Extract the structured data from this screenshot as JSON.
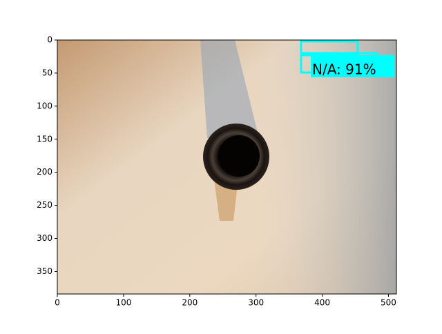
{
  "chart_data": {
    "type": "image",
    "xlim": [
      0,
      512
    ],
    "ylim": [
      384,
      0
    ],
    "xticks": [
      0,
      100,
      200,
      300,
      400,
      500
    ],
    "yticks": [
      0,
      50,
      100,
      150,
      200,
      250,
      300,
      350
    ],
    "annotations": [
      "N/A: 91%"
    ]
  }
}
